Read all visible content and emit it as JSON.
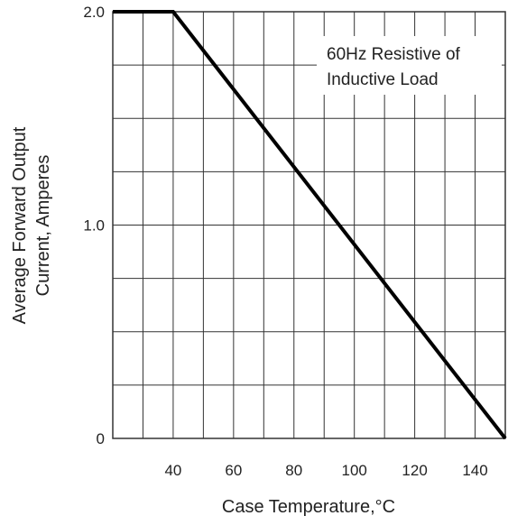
{
  "chart_data": {
    "type": "line",
    "title": "",
    "xlabel": "Case Temperature,°C",
    "ylabel_lines": [
      "Average Forward Output",
      "Current, Amperes"
    ],
    "annotation_lines": [
      "60Hz Resistive of",
      "Inductive Load"
    ],
    "xlim": [
      20,
      150
    ],
    "ylim": [
      0,
      2.0
    ],
    "x_ticks": [
      40,
      60,
      80,
      100,
      120,
      140
    ],
    "x_tick_labels": [
      "40",
      "60",
      "80",
      "100",
      "120",
      "140"
    ],
    "y_ticks": [
      0,
      1.0,
      2.0
    ],
    "y_tick_labels": [
      "0",
      "1.0",
      "2.0"
    ],
    "grid": true,
    "grid_x": [
      30,
      40,
      50,
      60,
      70,
      80,
      90,
      100,
      110,
      120,
      130,
      140
    ],
    "grid_y": [
      0.25,
      0.5,
      0.75,
      1.0,
      1.25,
      1.5,
      1.75,
      2.0
    ],
    "series": [
      {
        "x": [
          20,
          40,
          150
        ],
        "y": [
          2.0,
          2.0,
          0
        ],
        "color": "#000000"
      }
    ]
  }
}
